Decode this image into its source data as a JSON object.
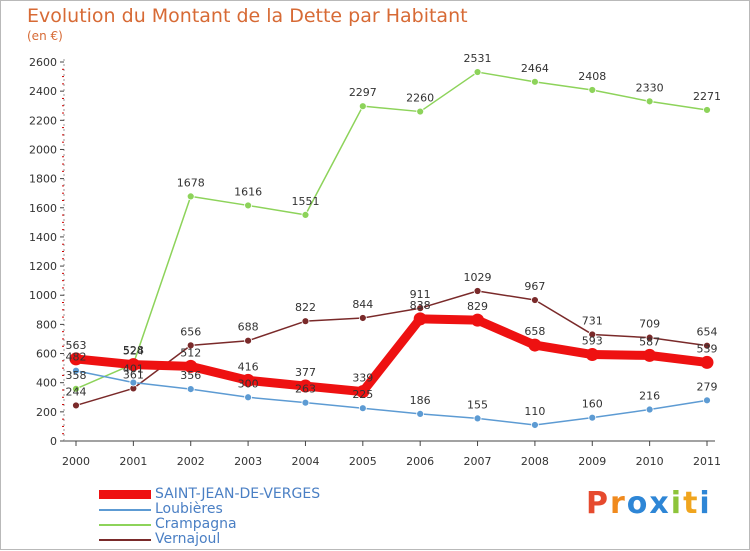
{
  "chart_data": {
    "type": "line",
    "title": "Evolution du Montant de la Dette par Habitant",
    "subtitle": "(en €)",
    "categories": [
      "2000",
      "2001",
      "2002",
      "2003",
      "2004",
      "2005",
      "2006",
      "2007",
      "2008",
      "2009",
      "2010",
      "2011"
    ],
    "ylim": [
      0,
      2600
    ],
    "yticks": [
      0,
      200,
      400,
      600,
      800,
      1000,
      1200,
      1400,
      1600,
      1800,
      2000,
      2200,
      2400,
      2600
    ],
    "grid": false,
    "legend_position": "bottom-left",
    "series": [
      {
        "name": "SAINT-JEAN-DE-VERGES",
        "color": "#ee1111",
        "values": [
          563,
          524,
          512,
          416,
          377,
          339,
          838,
          829,
          658,
          593,
          587,
          539
        ]
      },
      {
        "name": "Loubières",
        "color": "#5d9bd3",
        "values": [
          482,
          401,
          356,
          300,
          263,
          225,
          186,
          155,
          110,
          160,
          216,
          279
        ]
      },
      {
        "name": "Crampagna",
        "color": "#8dd35a",
        "values": [
          358,
          528,
          1678,
          1616,
          1551,
          2297,
          2260,
          2531,
          2464,
          2408,
          2330,
          2271
        ]
      },
      {
        "name": "Vernajoul",
        "color": "#7a2a2a",
        "values": [
          244,
          361,
          656,
          688,
          822,
          844,
          911,
          1029,
          967,
          731,
          709,
          654
        ]
      }
    ]
  },
  "brand": {
    "text": "Proxiti",
    "letter_colors": [
      "#e64a2e",
      "#f08a1e",
      "#2e86d6",
      "#2e86d6",
      "#8dc43a",
      "#f0a51e",
      "#2e86d6"
    ]
  }
}
